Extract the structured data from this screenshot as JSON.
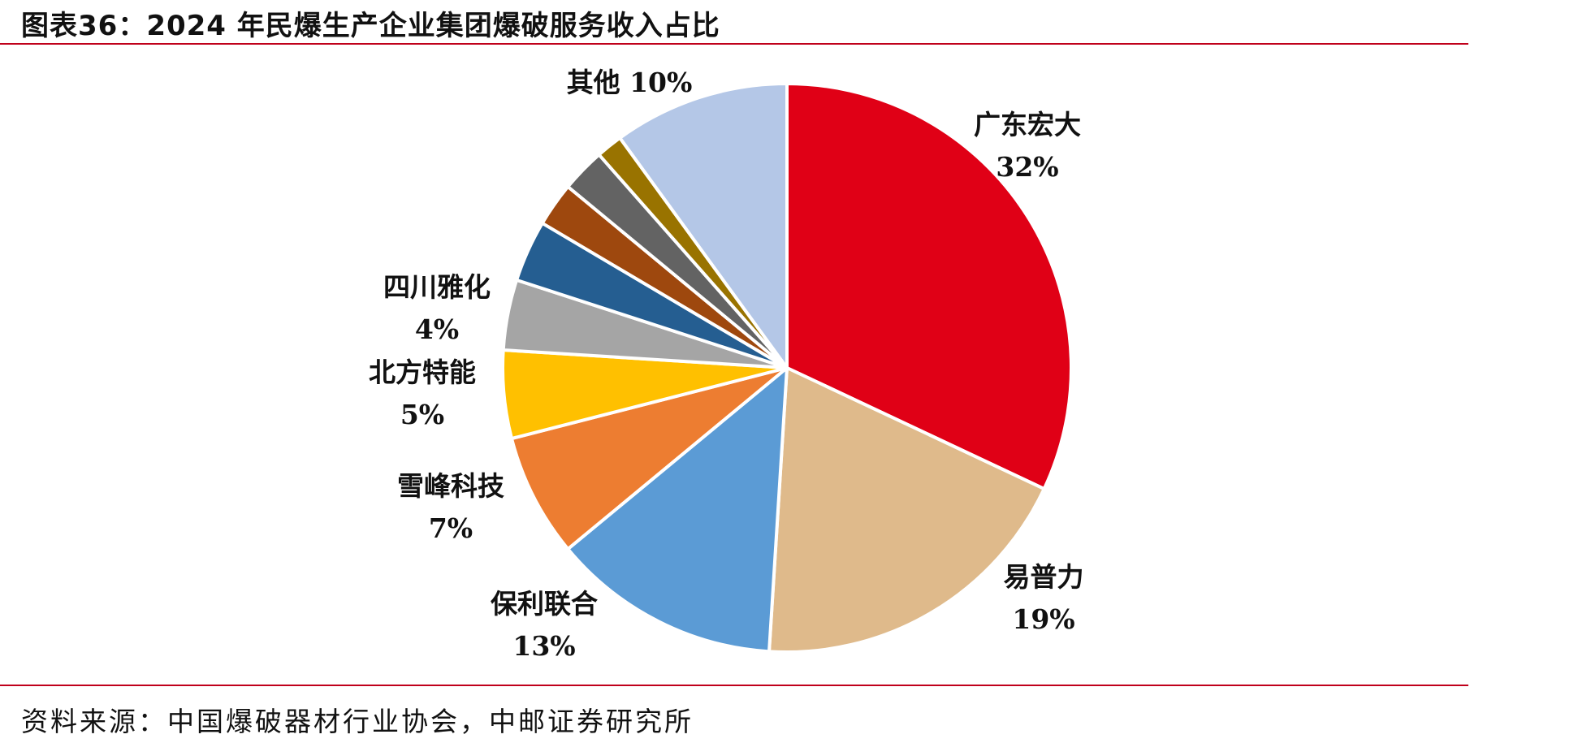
{
  "header": {
    "title": "图表36：2024 年民爆生产企业集团爆破服务收入占比"
  },
  "footer": {
    "source": "资料来源：中国爆破器材行业协会，中邮证券研究所"
  },
  "chart_data": {
    "type": "pie",
    "title": "图表36：2024 年民爆生产企业集团爆破服务收入占比",
    "slices": [
      {
        "name": "广东宏大",
        "value": 32,
        "label": "32%",
        "color": "#e00016"
      },
      {
        "name": "易普力",
        "value": 19,
        "label": "19%",
        "color": "#dfba8b"
      },
      {
        "name": "保利联合",
        "value": 13,
        "label": "13%",
        "color": "#5b9bd5"
      },
      {
        "name": "雪峰科技",
        "value": 7,
        "label": "7%",
        "color": "#ed7d31"
      },
      {
        "name": "北方特能",
        "value": 5,
        "label": "5%",
        "color": "#ffc000"
      },
      {
        "name": "四川雅化",
        "value": 4,
        "label": "4%",
        "color": "#a5a5a5"
      },
      {
        "name": "",
        "value": 3.5,
        "label": "",
        "color": "#255e91"
      },
      {
        "name": "",
        "value": 2.5,
        "label": "",
        "color": "#9e480e"
      },
      {
        "name": "",
        "value": 2.5,
        "label": "",
        "color": "#636363"
      },
      {
        "name": "",
        "value": 1.5,
        "label": "",
        "color": "#997300"
      },
      {
        "name": "其他",
        "value": 10,
        "label": "10%",
        "color": "#b4c7e7"
      }
    ],
    "legend": "none"
  }
}
